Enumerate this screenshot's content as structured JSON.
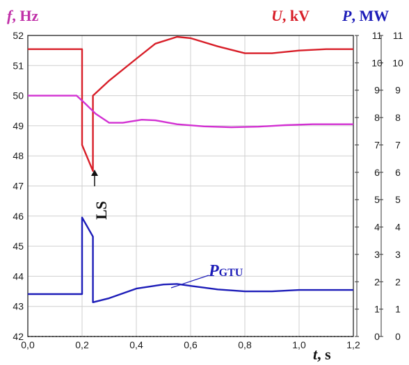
{
  "chart_data": {
    "type": "line",
    "xlabel": {
      "var": "t",
      "unit": ", s"
    },
    "x_ticks": [
      "0,0",
      "0,2",
      "0,4",
      "0,6",
      "0,8",
      "1,0",
      "1,2"
    ],
    "xlim": [
      0,
      1.2
    ],
    "axes": {
      "f": {
        "label_var": "f",
        "label_unit": ", Hz",
        "color": "#c030a8",
        "ylim": [
          42,
          52
        ],
        "ticks": [
          "42",
          "43",
          "44",
          "45",
          "46",
          "47",
          "48",
          "49",
          "50",
          "51",
          "52"
        ]
      },
      "U": {
        "label_var": "U",
        "label_unit": ", kV",
        "color": "#d81e28",
        "ylim": [
          0,
          11
        ],
        "ticks": [
          "0",
          "1",
          "2",
          "3",
          "4",
          "5",
          "6",
          "7",
          "8",
          "9",
          "10",
          "11"
        ]
      },
      "P": {
        "label_var": "P",
        "label_unit": ", MW",
        "color": "#1c1cb8",
        "ylim": [
          0,
          11
        ],
        "ticks": [
          "0",
          "1",
          "2",
          "3",
          "4",
          "5",
          "6",
          "7",
          "8",
          "9",
          "10",
          "11"
        ]
      }
    },
    "grid": true,
    "series": [
      {
        "axis": "U",
        "color": "#d81e28",
        "points": [
          [
            0,
            10.5
          ],
          [
            0.2,
            10.5
          ],
          [
            0.2,
            7.0
          ],
          [
            0.24,
            6.05
          ],
          [
            0.24,
            8.8
          ],
          [
            0.3,
            9.35
          ],
          [
            0.4,
            10.15
          ],
          [
            0.47,
            10.7
          ],
          [
            0.55,
            10.95
          ],
          [
            0.6,
            10.9
          ],
          [
            0.7,
            10.6
          ],
          [
            0.8,
            10.35
          ],
          [
            0.9,
            10.35
          ],
          [
            1.0,
            10.45
          ],
          [
            1.1,
            10.5
          ],
          [
            1.2,
            10.5
          ]
        ]
      },
      {
        "axis": "f",
        "color": "#d230d2",
        "points": [
          [
            0,
            50.0
          ],
          [
            0.18,
            50.0
          ],
          [
            0.21,
            49.75
          ],
          [
            0.25,
            49.4
          ],
          [
            0.3,
            49.1
          ],
          [
            0.35,
            49.1
          ],
          [
            0.42,
            49.2
          ],
          [
            0.47,
            49.18
          ],
          [
            0.55,
            49.05
          ],
          [
            0.65,
            48.98
          ],
          [
            0.75,
            48.95
          ],
          [
            0.85,
            48.97
          ],
          [
            0.95,
            49.02
          ],
          [
            1.05,
            49.05
          ],
          [
            1.2,
            49.05
          ]
        ]
      },
      {
        "axis": "P",
        "color": "#1c1cb8",
        "points": [
          [
            0,
            1.55
          ],
          [
            0.2,
            1.55
          ],
          [
            0.2,
            4.35
          ],
          [
            0.24,
            3.65
          ],
          [
            0.24,
            1.25
          ],
          [
            0.3,
            1.4
          ],
          [
            0.4,
            1.75
          ],
          [
            0.5,
            1.9
          ],
          [
            0.55,
            1.92
          ],
          [
            0.6,
            1.85
          ],
          [
            0.7,
            1.72
          ],
          [
            0.8,
            1.65
          ],
          [
            0.9,
            1.65
          ],
          [
            1.0,
            1.7
          ],
          [
            1.1,
            1.7
          ],
          [
            1.2,
            1.7
          ]
        ]
      }
    ],
    "annotations": {
      "ls": {
        "text": "LS",
        "x": 0.24,
        "y_axis": "U",
        "y": 5.8
      },
      "pgtu": {
        "var": "P",
        "sub": "GTU",
        "point_x": 0.55,
        "point_y": 1.92
      }
    }
  }
}
